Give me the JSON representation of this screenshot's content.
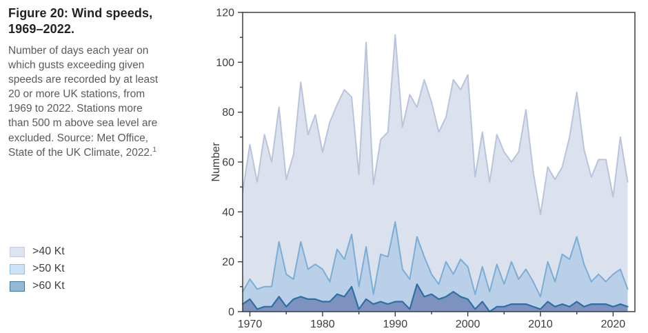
{
  "figure": {
    "title": "Figure 20: Wind speeds, 1969–2022.",
    "description": "Number of days each year on which gusts exceeding given speeds are recorded by at least 20 or more UK stations, from 1969 to 2022. Stations more than 500 m above sea level are excluded. Source: Met Office, State of the UK Climate, 2022.",
    "footnote_marker": "1"
  },
  "legend": [
    {
      "label": ">40 Kt",
      "fill": "#dde3ef",
      "stroke": "#c2cce2"
    },
    {
      "label": ">50 Kt",
      "fill": "#cce3f7",
      "stroke": "#8fc0e9"
    },
    {
      "label": ">60 Kt",
      "fill": "#93b9d4",
      "stroke": "#3a759e"
    }
  ],
  "chart_data": {
    "type": "area",
    "title": "",
    "xlabel": "",
    "ylabel": "Number",
    "x": [
      1969,
      1970,
      1971,
      1972,
      1973,
      1974,
      1975,
      1976,
      1977,
      1978,
      1979,
      1980,
      1981,
      1982,
      1983,
      1984,
      1985,
      1986,
      1987,
      1988,
      1989,
      1990,
      1991,
      1992,
      1993,
      1994,
      1995,
      1996,
      1997,
      1998,
      1999,
      2000,
      2001,
      2002,
      2003,
      2004,
      2005,
      2006,
      2007,
      2008,
      2009,
      2010,
      2011,
      2012,
      2013,
      2014,
      2015,
      2016,
      2017,
      2018,
      2019,
      2020,
      2021,
      2022
    ],
    "series": [
      {
        "name": ">40 Kt",
        "fill": "#dbe1ed",
        "line": "#b8c4db",
        "line_width": 2,
        "values": [
          48,
          67,
          52,
          71,
          60,
          82,
          53,
          63,
          92,
          71,
          79,
          64,
          76,
          83,
          89,
          86,
          55,
          108,
          51,
          69,
          72,
          111,
          74,
          87,
          82,
          93,
          84,
          72,
          78,
          93,
          89,
          95,
          54,
          72,
          52,
          71,
          64,
          60,
          64,
          81,
          56,
          39,
          58,
          53,
          58,
          70,
          88,
          65,
          54,
          61,
          61,
          46,
          70,
          52
        ]
      },
      {
        "name": ">50 Kt",
        "fill": "#b9d0e8",
        "line": "#7aadd6",
        "line_width": 2,
        "values": [
          8,
          13,
          9,
          10,
          10,
          28,
          15,
          13,
          28,
          17,
          19,
          17,
          12,
          25,
          21,
          31,
          10,
          26,
          7,
          23,
          22,
          36,
          17,
          13,
          30,
          22,
          15,
          11,
          20,
          15,
          21,
          18,
          7,
          18,
          8,
          19,
          11,
          20,
          13,
          17,
          12,
          6,
          20,
          12,
          23,
          21,
          30,
          19,
          12,
          15,
          12,
          15,
          17,
          9
        ]
      },
      {
        "name": ">60 Kt",
        "fill": "#7e92bf",
        "line": "#2e6fa3",
        "line_width": 2.2,
        "values": [
          3,
          5,
          1,
          2,
          2,
          6,
          2,
          5,
          6,
          5,
          5,
          4,
          4,
          7,
          6,
          10,
          1,
          5,
          3,
          4,
          3,
          4,
          4,
          1,
          11,
          6,
          7,
          5,
          6,
          8,
          6,
          5,
          1,
          4,
          0,
          2,
          2,
          3,
          3,
          3,
          2,
          1,
          4,
          2,
          3,
          2,
          4,
          2,
          3,
          3,
          3,
          2,
          3,
          2
        ]
      }
    ],
    "xlim": [
      1969,
      2023
    ],
    "ylim": [
      0,
      120
    ],
    "xticks_major": [
      1970,
      1980,
      1990,
      2000,
      2010,
      2020
    ],
    "xticks_minor": [
      1975,
      1985,
      1995,
      2005,
      2015
    ],
    "yticks_major": [
      0,
      20,
      40,
      60,
      80,
      100,
      120
    ],
    "yticks_minor": [
      10,
      30,
      50,
      70,
      90,
      110
    ],
    "grid": false,
    "legend_position": "outside-left",
    "frame_color": "#3a3a40",
    "tick_label_color": "#3c3d40"
  }
}
